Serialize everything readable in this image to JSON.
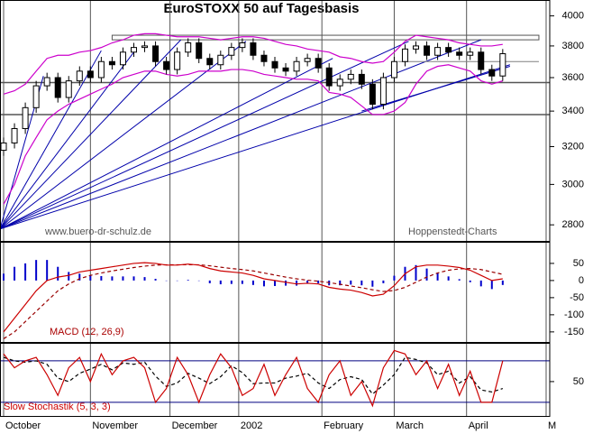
{
  "chart_data": {
    "type": "candlestick",
    "title": "EuroSTOXX 50 auf Tagesbasis",
    "annotations": [
      "www.buero-dr-schulz.de",
      "Hoppenstedt-Charts"
    ],
    "log_scale": true,
    "xlim": [
      0,
      152
    ],
    "xticks": [
      {
        "value": 1,
        "label": "October"
      },
      {
        "value": 25,
        "label": "November"
      },
      {
        "value": 47,
        "label": "December"
      },
      {
        "value": 66,
        "label": "2002"
      },
      {
        "value": 89,
        "label": "February"
      },
      {
        "value": 109,
        "label": "March"
      },
      {
        "value": 129,
        "label": "April"
      },
      {
        "value": 151,
        "label": "M"
      }
    ],
    "x": [
      1,
      4,
      7,
      10,
      13,
      16,
      19,
      22,
      25,
      28,
      31,
      34,
      37,
      40,
      43,
      46,
      49,
      52,
      55,
      58,
      61,
      64,
      67,
      70,
      73,
      76,
      79,
      82,
      85,
      88,
      91,
      94,
      97,
      100,
      103,
      106,
      109,
      112,
      115,
      118,
      121,
      124,
      127,
      130,
      133,
      136,
      139
    ],
    "open": [
      3180,
      3220,
      3300,
      3420,
      3550,
      3600,
      3480,
      3580,
      3640,
      3600,
      3700,
      3680,
      3760,
      3790,
      3800,
      3700,
      3650,
      3760,
      3820,
      3720,
      3680,
      3740,
      3790,
      3820,
      3740,
      3700,
      3660,
      3640,
      3700,
      3720,
      3660,
      3550,
      3590,
      3620,
      3560,
      3440,
      3600,
      3700,
      3780,
      3800,
      3740,
      3790,
      3760,
      3740,
      3760,
      3650,
      3610
    ],
    "high": [
      3250,
      3330,
      3450,
      3580,
      3630,
      3630,
      3610,
      3670,
      3670,
      3730,
      3730,
      3790,
      3820,
      3830,
      3830,
      3730,
      3790,
      3850,
      3850,
      3750,
      3770,
      3820,
      3850,
      3850,
      3770,
      3730,
      3690,
      3730,
      3750,
      3750,
      3690,
      3620,
      3650,
      3650,
      3590,
      3630,
      3730,
      3810,
      3830,
      3830,
      3820,
      3820,
      3790,
      3790,
      3790,
      3680,
      3780
    ],
    "low": [
      3150,
      3190,
      3270,
      3390,
      3520,
      3450,
      3450,
      3550,
      3570,
      3570,
      3650,
      3650,
      3730,
      3760,
      3670,
      3620,
      3620,
      3730,
      3690,
      3650,
      3650,
      3710,
      3760,
      3710,
      3670,
      3630,
      3610,
      3610,
      3670,
      3630,
      3520,
      3520,
      3560,
      3530,
      3410,
      3410,
      3570,
      3670,
      3750,
      3710,
      3710,
      3730,
      3710,
      3710,
      3620,
      3580,
      3580
    ],
    "close": [
      3220,
      3300,
      3420,
      3550,
      3600,
      3480,
      3580,
      3640,
      3600,
      3700,
      3680,
      3760,
      3790,
      3800,
      3700,
      3650,
      3760,
      3820,
      3720,
      3680,
      3740,
      3790,
      3820,
      3740,
      3700,
      3660,
      3640,
      3700,
      3720,
      3660,
      3550,
      3590,
      3620,
      3560,
      3440,
      3600,
      3700,
      3780,
      3800,
      3740,
      3790,
      3760,
      3740,
      3760,
      3650,
      3610,
      3750
    ],
    "band_upper": [
      3500,
      3520,
      3560,
      3640,
      3720,
      3740,
      3740,
      3760,
      3770,
      3790,
      3820,
      3840,
      3870,
      3880,
      3880,
      3870,
      3860,
      3860,
      3860,
      3850,
      3840,
      3850,
      3860,
      3860,
      3850,
      3830,
      3810,
      3800,
      3780,
      3770,
      3760,
      3730,
      3720,
      3700,
      3690,
      3700,
      3760,
      3830,
      3870,
      3860,
      3850,
      3840,
      3820,
      3810,
      3800,
      3800,
      3810
    ],
    "band_lower": [
      2900,
      3000,
      3150,
      3250,
      3350,
      3400,
      3440,
      3470,
      3500,
      3530,
      3560,
      3600,
      3620,
      3640,
      3640,
      3620,
      3610,
      3620,
      3640,
      3640,
      3640,
      3650,
      3650,
      3640,
      3620,
      3610,
      3600,
      3590,
      3590,
      3580,
      3510,
      3500,
      3480,
      3430,
      3380,
      3380,
      3400,
      3450,
      3560,
      3640,
      3670,
      3680,
      3660,
      3640,
      3580,
      3560,
      3580
    ],
    "band_color": "#cc00cc",
    "up_color": "#ffffff",
    "down_color": "#000000",
    "ylim": [
      2720,
      4110
    ],
    "yticks": [
      2800,
      3000,
      3200,
      3400,
      3600,
      3800,
      4000
    ],
    "trendlines": [
      {
        "color": "#0000aa",
        "points": [
          [
            0,
            2780
          ],
          [
            12,
            3610
          ]
        ]
      },
      {
        "color": "#0000aa",
        "points": [
          [
            0,
            2780
          ],
          [
            28,
            3770
          ]
        ]
      },
      {
        "color": "#0000aa",
        "points": [
          [
            0,
            2780
          ],
          [
            37,
            3760
          ]
        ]
      },
      {
        "color": "#0000aa",
        "points": [
          [
            0,
            2780
          ],
          [
            50,
            3840
          ]
        ]
      },
      {
        "color": "#0000aa",
        "points": [
          [
            0,
            2780
          ],
          [
            68,
            3830
          ]
        ]
      },
      {
        "color": "#0000aa",
        "points": [
          [
            0,
            2780
          ],
          [
            92,
            3720
          ]
        ]
      },
      {
        "color": "#0000aa",
        "points": [
          [
            0,
            2780
          ],
          [
            113,
            3830
          ]
        ]
      },
      {
        "color": "#0000aa",
        "points": [
          [
            0,
            2780
          ],
          [
            133,
            3840
          ]
        ]
      },
      {
        "color": "#0000aa",
        "points": [
          [
            0,
            2780
          ],
          [
            141,
            3680
          ]
        ]
      },
      {
        "color": "#0000aa",
        "points": [
          [
            100,
            3400
          ],
          [
            141,
            3670
          ]
        ]
      },
      {
        "color": "#808080",
        "points": [
          [
            110,
            3700
          ],
          [
            149,
            3700
          ]
        ]
      }
    ],
    "horizontal_lines": [
      3570,
      3380
    ],
    "box": {
      "x": [
        31,
        149
      ],
      "y": [
        3840,
        3870
      ]
    },
    "macd": {
      "label": "MACD (12, 26,9)",
      "ylim": [
        -182,
        113
      ],
      "yticks": [
        -150,
        -100,
        -50,
        0,
        50
      ],
      "macd_color": "#cc0000",
      "signal_color": "#990000",
      "hist_color": "#0000cc",
      "macd": [
        -150,
        -110,
        -70,
        -30,
        0,
        10,
        15,
        25,
        30,
        35,
        40,
        45,
        50,
        52,
        50,
        45,
        45,
        48,
        45,
        35,
        28,
        25,
        22,
        15,
        5,
        0,
        -5,
        -10,
        -8,
        -10,
        -20,
        -25,
        -28,
        -35,
        -45,
        -40,
        -15,
        20,
        40,
        45,
        45,
        42,
        38,
        30,
        15,
        0,
        5
      ],
      "signal": [
        -170,
        -150,
        -120,
        -90,
        -60,
        -30,
        -10,
        5,
        15,
        22,
        28,
        33,
        38,
        42,
        45,
        46,
        46,
        46,
        46,
        43,
        39,
        35,
        32,
        28,
        22,
        16,
        10,
        5,
        1,
        -2,
        -6,
        -11,
        -16,
        -21,
        -27,
        -32,
        -29,
        -20,
        -5,
        10,
        22,
        30,
        34,
        35,
        32,
        25,
        18
      ],
      "histogram": [
        20,
        40,
        50,
        60,
        60,
        40,
        25,
        20,
        15,
        13,
        12,
        12,
        12,
        10,
        5,
        -1,
        -1,
        2,
        -1,
        -8,
        -11,
        -10,
        -10,
        -13,
        -17,
        -16,
        -15,
        -15,
        -9,
        -8,
        -14,
        -14,
        -12,
        -14,
        -18,
        -8,
        14,
        40,
        45,
        35,
        23,
        12,
        4,
        -5,
        -17,
        -25,
        -13
      ]
    },
    "stochastic": {
      "label": "Slow Stochastik (5, 3, 3)",
      "ylim": [
        -1,
        106
      ],
      "yticks": [
        50
      ],
      "reference_lines": [
        80,
        20
      ],
      "k_color": "#cc0000",
      "d_color": "#000000",
      "k": [
        90,
        70,
        80,
        85,
        60,
        30,
        70,
        85,
        50,
        90,
        60,
        80,
        85,
        70,
        20,
        40,
        85,
        60,
        20,
        60,
        90,
        70,
        30,
        40,
        75,
        30,
        60,
        85,
        40,
        20,
        60,
        80,
        30,
        50,
        15,
        70,
        95,
        90,
        60,
        80,
        40,
        75,
        30,
        65,
        20,
        20,
        80
      ],
      "d": [
        85,
        80,
        78,
        80,
        75,
        55,
        50,
        62,
        68,
        75,
        67,
        77,
        75,
        78,
        58,
        43,
        48,
        62,
        55,
        47,
        57,
        73,
        63,
        47,
        48,
        48,
        55,
        58,
        62,
        48,
        40,
        53,
        57,
        53,
        32,
        45,
        60,
        85,
        82,
        77,
        60,
        65,
        48,
        57,
        38,
        35,
        40
      ]
    }
  }
}
